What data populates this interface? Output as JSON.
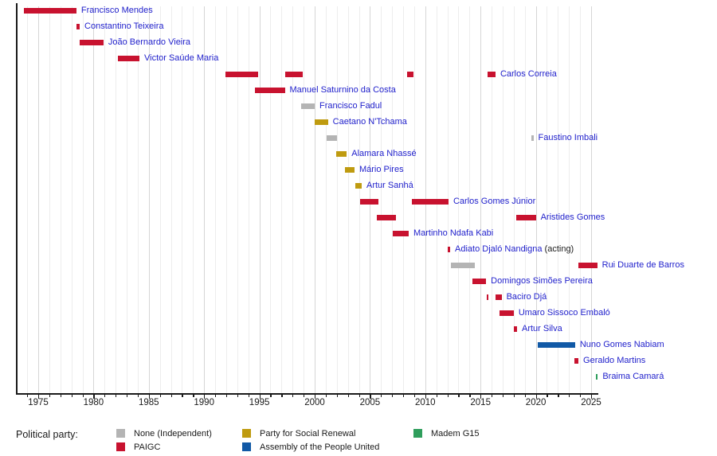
{
  "chart_data": {
    "type": "bar",
    "variant": "gantt-timeline",
    "title": "",
    "subject": "Prime Ministers of Guinea-Bissau by term and political party",
    "x_axis": {
      "min": 1973.0,
      "max": 2025.7,
      "major_step": 5,
      "minor_step": 1,
      "grid": true,
      "tick_labels": [
        "1975",
        "1980",
        "1985",
        "1990",
        "1995",
        "2000",
        "2005",
        "2010",
        "2015",
        "2020",
        "2025"
      ]
    },
    "parties": {
      "none": {
        "label": "None (Independent)",
        "color": "#b4b4b4"
      },
      "paigc": {
        "label": "PAIGC",
        "color": "#c8122f"
      },
      "prs": {
        "label": "Party for Social Renewal",
        "color": "#bf9b10"
      },
      "apu": {
        "label": "Assembly of the People United",
        "color": "#1159a6"
      },
      "madem": {
        "label": "Madem G15",
        "color": "#2f9e5c"
      }
    },
    "legend": {
      "title": "Political party:",
      "columns": [
        [
          "none",
          "paigc"
        ],
        [
          "prs",
          "apu"
        ],
        [
          "madem"
        ]
      ]
    },
    "label_color": "#2222cc",
    "rows": [
      {
        "name": "Francisco Mendes",
        "terms": [
          {
            "start": 1973.7,
            "end": 1978.45,
            "party": "paigc"
          }
        ]
      },
      {
        "name": "Constantino Teixeira",
        "terms": [
          {
            "start": 1978.45,
            "end": 1978.75,
            "party": "paigc"
          }
        ]
      },
      {
        "name": "João Bernardo Vieira",
        "terms": [
          {
            "start": 1978.75,
            "end": 1980.9,
            "party": "paigc"
          }
        ]
      },
      {
        "name": "Victor Saúde Maria",
        "terms": [
          {
            "start": 1982.2,
            "end": 1984.15,
            "party": "paigc"
          }
        ]
      },
      {
        "name": "Carlos Correia",
        "terms": [
          {
            "start": 1991.9,
            "end": 1994.85,
            "party": "paigc"
          },
          {
            "start": 1997.3,
            "end": 1998.95,
            "party": "paigc"
          },
          {
            "start": 2008.35,
            "end": 2008.9,
            "party": "paigc"
          },
          {
            "start": 2015.6,
            "end": 2016.35,
            "party": "paigc"
          }
        ]
      },
      {
        "name": "Manuel Saturnino da Costa",
        "terms": [
          {
            "start": 1994.6,
            "end": 1997.3,
            "party": "paigc"
          }
        ]
      },
      {
        "name": "Francisco Fadul",
        "terms": [
          {
            "start": 1998.8,
            "end": 2000.0,
            "party": "none"
          }
        ]
      },
      {
        "name": "Caetano N'Tchama",
        "terms": [
          {
            "start": 2000.0,
            "end": 2001.2,
            "party": "prs"
          }
        ]
      },
      {
        "name": "Faustino Imbali",
        "terms": [
          {
            "start": 2001.1,
            "end": 2002.0,
            "party": "none"
          },
          {
            "start": 2019.6,
            "end": 2019.78,
            "party": "none"
          }
        ]
      },
      {
        "name": "Alamara Nhassé",
        "terms": [
          {
            "start": 2001.95,
            "end": 2002.9,
            "party": "prs"
          }
        ]
      },
      {
        "name": "Mário Pires",
        "terms": [
          {
            "start": 2002.75,
            "end": 2003.6,
            "party": "prs"
          }
        ]
      },
      {
        "name": "Artur Sanhá",
        "terms": [
          {
            "start": 2003.7,
            "end": 2004.25,
            "party": "prs"
          }
        ]
      },
      {
        "name": "Carlos Gomes Júnior",
        "terms": [
          {
            "start": 2004.1,
            "end": 2005.75,
            "party": "paigc"
          },
          {
            "start": 2008.8,
            "end": 2012.1,
            "party": "paigc"
          }
        ]
      },
      {
        "name": "Aristides Gomes",
        "terms": [
          {
            "start": 2005.6,
            "end": 2007.35,
            "party": "paigc"
          },
          {
            "start": 2018.2,
            "end": 2020.0,
            "party": "paigc"
          }
        ]
      },
      {
        "name": "Martinho Ndafa Kabi",
        "terms": [
          {
            "start": 2007.05,
            "end": 2008.5,
            "party": "paigc"
          }
        ]
      },
      {
        "name": "Adiato Djaló Nandigna",
        "suffix": " (acting)",
        "terms": [
          {
            "start": 2012.05,
            "end": 2012.25,
            "party": "paigc"
          }
        ]
      },
      {
        "name": "Rui Duarte de Barros",
        "terms": [
          {
            "start": 2012.3,
            "end": 2014.5,
            "party": "none"
          },
          {
            "start": 2023.85,
            "end": 2025.55,
            "party": "paigc"
          }
        ]
      },
      {
        "name": "Domingos Simões Pereira",
        "terms": [
          {
            "start": 2014.3,
            "end": 2015.5,
            "party": "paigc"
          }
        ]
      },
      {
        "name": "Baciro Djá",
        "terms": [
          {
            "start": 2015.55,
            "end": 2015.7,
            "party": "paigc"
          },
          {
            "start": 2016.35,
            "end": 2016.9,
            "party": "paigc"
          }
        ]
      },
      {
        "name": "Umaro Sissoco Embaló",
        "terms": [
          {
            "start": 2016.7,
            "end": 2018.0,
            "party": "paigc"
          }
        ]
      },
      {
        "name": "Artur Silva",
        "terms": [
          {
            "start": 2018.0,
            "end": 2018.3,
            "party": "paigc"
          }
        ]
      },
      {
        "name": "Nuno Gomes Nabiam",
        "terms": [
          {
            "start": 2020.15,
            "end": 2023.55,
            "party": "apu"
          }
        ]
      },
      {
        "name": "Geraldo Martins",
        "terms": [
          {
            "start": 2023.5,
            "end": 2023.85,
            "party": "paigc"
          }
        ]
      },
      {
        "name": "Braima Camará",
        "terms": [
          {
            "start": 2025.45,
            "end": 2025.6,
            "party": "madem"
          }
        ]
      }
    ]
  }
}
